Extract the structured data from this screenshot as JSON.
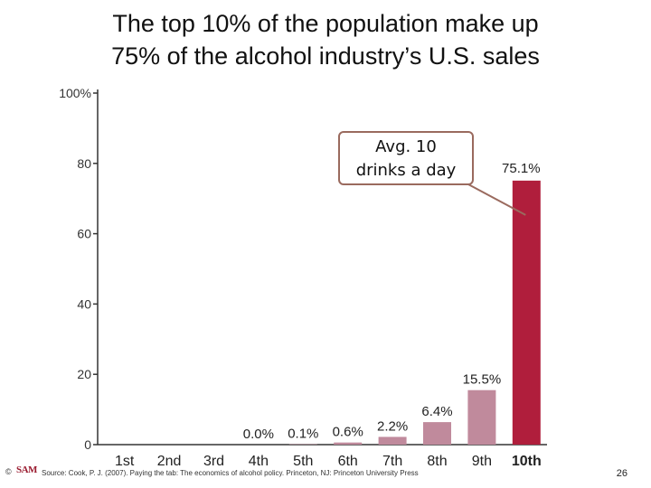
{
  "slide": {
    "title_line1": "The top 10% of the population make up",
    "title_line2": "75% of the alcohol industry’s U.S. sales",
    "callout_line1": "Avg. 10",
    "callout_line2": "drinks a day",
    "footer_copyright": "©",
    "footer_logo": "SAM",
    "source": "Source: Cook, P. J. (2007). Paying the tab: The economics of alcohol policy. Princeton, NJ: Princeton University Press",
    "page_number": "26"
  },
  "colors": {
    "top_bar": "#b01e3c",
    "other_bars": "#c08a9c",
    "axis": "#333333",
    "callout_border": "#9a6a5e"
  },
  "chart_data": {
    "type": "bar",
    "title": "The top 10% of the population make up 75% of the alcohol industry’s U.S. sales",
    "xlabel": "",
    "ylabel": "",
    "categories": [
      "1st",
      "2nd",
      "3rd",
      "4th",
      "5th",
      "6th",
      "7th",
      "8th",
      "9th",
      "10th"
    ],
    "values": [
      0,
      0,
      0,
      0.0,
      0.1,
      0.6,
      2.2,
      6.4,
      15.5,
      75.1
    ],
    "data_labels": [
      "",
      "",
      "",
      "0.0%",
      "0.1%",
      "0.6%",
      "2.2%",
      "6.4%",
      "15.5%",
      "75.1%"
    ],
    "y_ticks": [
      "0",
      "20",
      "40",
      "60",
      "80",
      "100%"
    ],
    "ylim": [
      0,
      100
    ],
    "grid": false,
    "legend": "none"
  }
}
